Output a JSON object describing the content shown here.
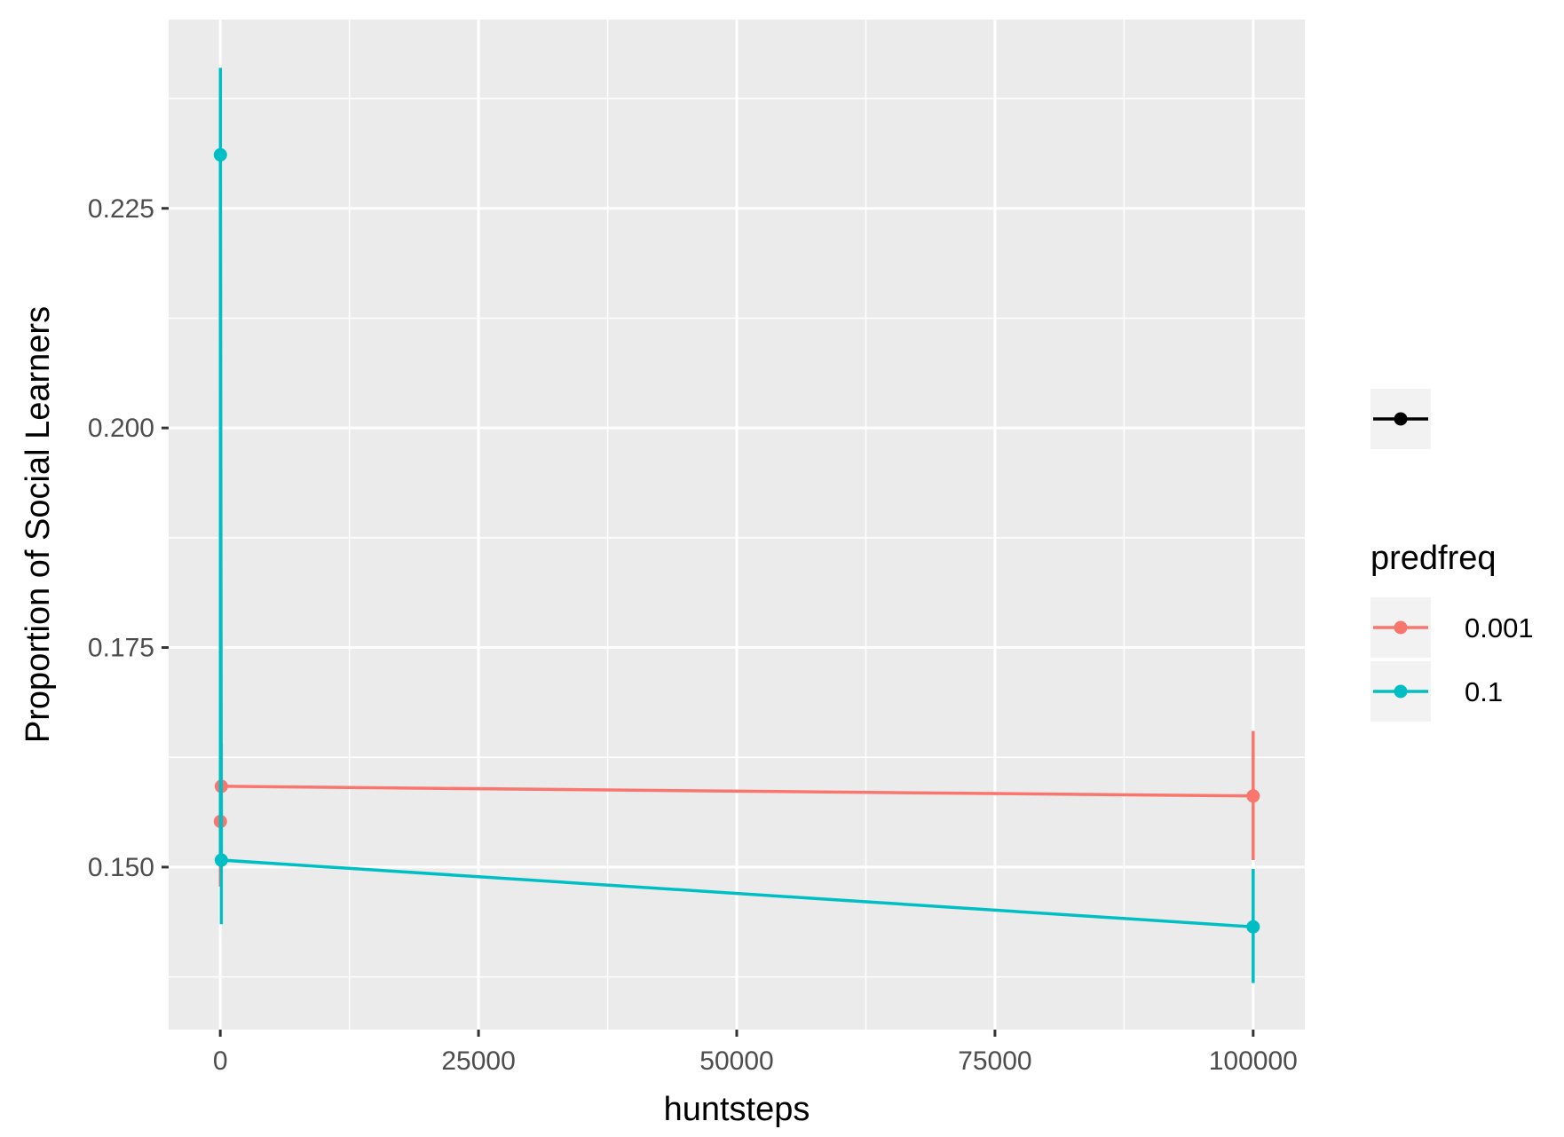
{
  "chart_data": {
    "type": "line",
    "xlabel": "huntsteps",
    "ylabel": "Proportion of Social Learners",
    "xlim": [
      -5000,
      105000
    ],
    "ylim": [
      0.1315,
      0.2465
    ],
    "x_ticks": [
      {
        "value": 0,
        "label": "0"
      },
      {
        "value": 25000,
        "label": "25000"
      },
      {
        "value": 50000,
        "label": "50000"
      },
      {
        "value": 75000,
        "label": "75000"
      },
      {
        "value": 100000,
        "label": "100000"
      }
    ],
    "y_ticks": [
      {
        "value": 0.15,
        "label": "0.150"
      },
      {
        "value": 0.175,
        "label": "0.175"
      },
      {
        "value": 0.2,
        "label": "0.200"
      },
      {
        "value": 0.225,
        "label": "0.225"
      }
    ],
    "grid": true,
    "legend": {
      "title": "predfreq",
      "placement": "right",
      "entries": [
        "0.001",
        "0.1"
      ]
    },
    "series": [
      {
        "name": "0.001",
        "color": "#F8766D",
        "points": [
          {
            "x": 10,
            "y": 0.1552,
            "ymin": 0.1478,
            "ymax": 0.1622
          },
          {
            "x": 100,
            "y": 0.1592,
            "ymin": 0.1545,
            "ymax": 0.164
          },
          {
            "x": 100000,
            "y": 0.1581,
            "ymin": 0.1508,
            "ymax": 0.1655
          }
        ]
      },
      {
        "name": "0.1",
        "color": "#00BFC4",
        "points": [
          {
            "x": 10,
            "y": 0.2311,
            "ymin": 0.1508,
            "ymax": 0.241
          },
          {
            "x": 100,
            "y": 0.1508,
            "ymin": 0.1435,
            "ymax": 0.158
          },
          {
            "x": 100000,
            "y": 0.1432,
            "ymin": 0.1368,
            "ymax": 0.1498
          }
        ]
      }
    ]
  }
}
